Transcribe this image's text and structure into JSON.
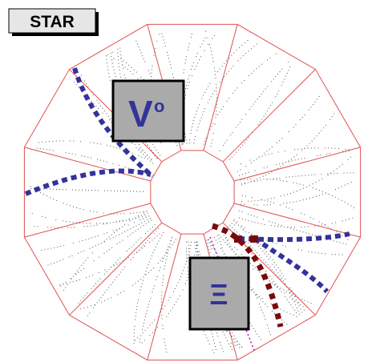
{
  "badge": "STAR",
  "panels": [
    {
      "symbol": "V",
      "superscript": "o"
    },
    {
      "symbol": "Ξ"
    }
  ]
}
